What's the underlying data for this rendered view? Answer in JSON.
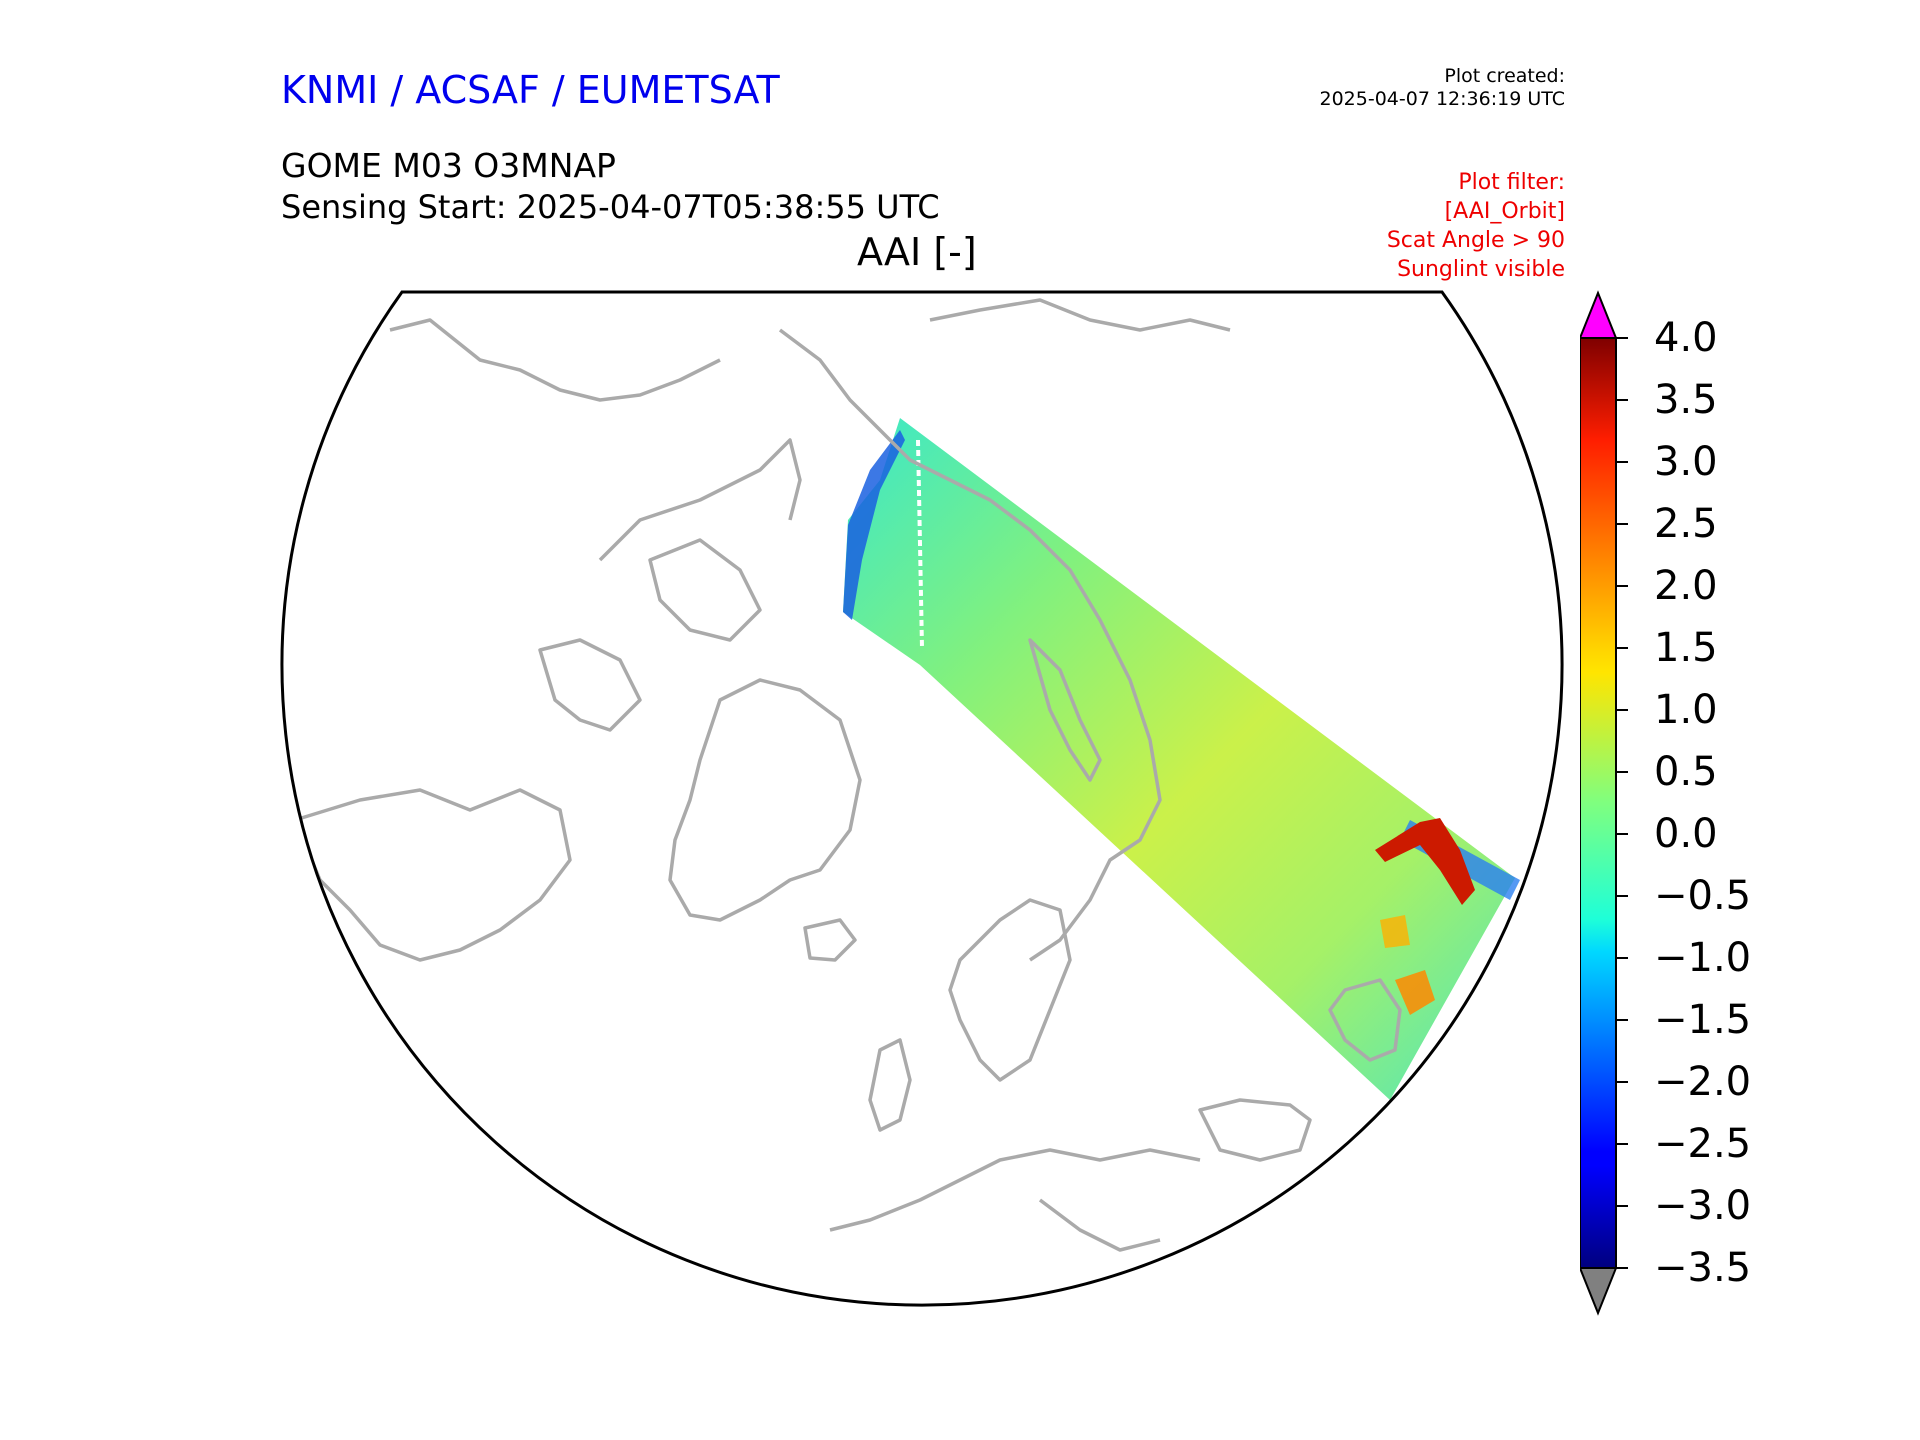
{
  "header": {
    "org": "KNMI / ACSAF / EUMETSAT",
    "created_label": "Plot created:",
    "created_time": "2025-04-07 12:36:19 UTC",
    "product": "GOME M03 O3MNAP",
    "sensing": "Sensing Start: 2025-04-07T05:38:55 UTC",
    "map_title": "AAI [-]"
  },
  "filter": {
    "lines": [
      "Plot filter:",
      "[AAI_Orbit]",
      "Scat Angle > 90",
      "Sunglint visible"
    ]
  },
  "colorbar": {
    "min": -3.5,
    "max": 4.0,
    "ticks": [
      "4.0",
      "3.5",
      "3.0",
      "2.5",
      "2.0",
      "1.5",
      "1.0",
      "0.5",
      "0.0",
      "−0.5",
      "−1.0",
      "−1.5",
      "−2.0",
      "−2.5",
      "−3.0",
      "−3.5"
    ],
    "over_color": "#ff00ff",
    "under_color": "#808080",
    "colormap": "jet"
  },
  "colors": {
    "coastline": "#aaaaaa",
    "boundary": "#000000"
  }
}
